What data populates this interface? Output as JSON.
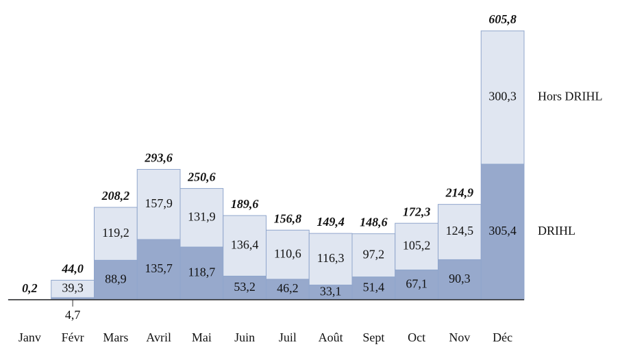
{
  "chart_data": {
    "type": "stacked_bar",
    "categories": [
      "Janv",
      "Févr",
      "Mars",
      "Avril",
      "Mai",
      "Juin",
      "Juil",
      "Août",
      "Sept",
      "Oct",
      "Nov",
      "Déc"
    ],
    "series": [
      {
        "name": "DRIHL",
        "color": "#97a9cc",
        "values": [
          0.2,
          4.7,
          88.9,
          135.7,
          118.7,
          53.2,
          46.2,
          33.1,
          51.4,
          67.1,
          90.3,
          305.4
        ],
        "value_labels": [
          null,
          "4,7",
          "88,9",
          "135,7",
          "118,7",
          "53,2",
          "46,2",
          "33,1",
          "51,4",
          "67,1",
          "90,3",
          "305,4"
        ]
      },
      {
        "name": "Hors DRIHL",
        "color": "#e0e6f1",
        "values": [
          0,
          39.3,
          119.2,
          157.9,
          131.9,
          136.4,
          110.6,
          116.3,
          97.2,
          105.2,
          124.5,
          300.3
        ],
        "value_labels": [
          null,
          "39,3",
          "119,2",
          "157,9",
          "131,9",
          "136,4",
          "110,6",
          "116,3",
          "97,2",
          "105,2",
          "124,5",
          "300,3"
        ]
      }
    ],
    "totals": [
      0.2,
      44.0,
      208.2,
      293.6,
      250.6,
      189.6,
      156.8,
      149.4,
      148.6,
      172.3,
      214.9,
      605.8
    ],
    "total_labels": [
      "0,2",
      "44,0",
      "208,2",
      "293,6",
      "250,6",
      "189,6",
      "156,8",
      "149,4",
      "148,6",
      "172,3",
      "214,9",
      "605,8"
    ]
  }
}
